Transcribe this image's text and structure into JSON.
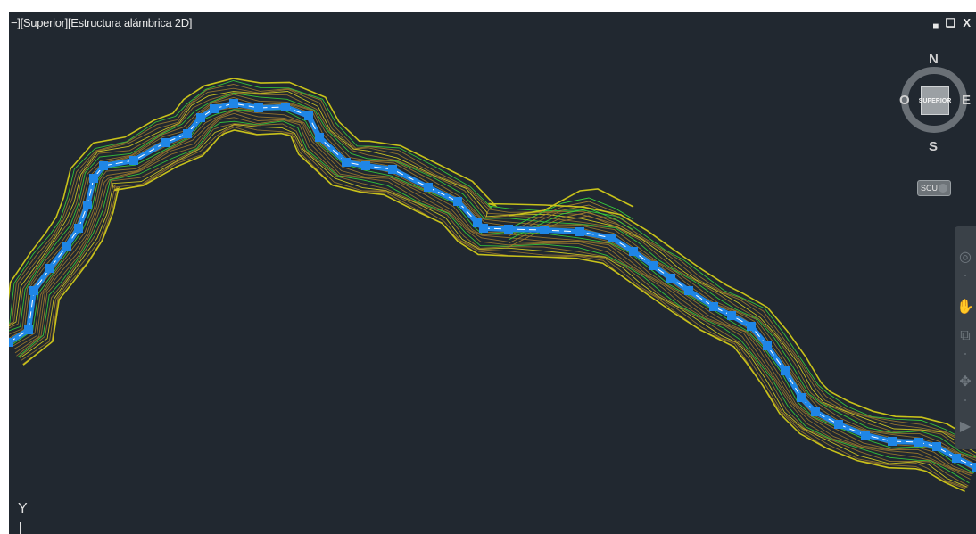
{
  "viewport": {
    "label": "−][Superior][Estructura alámbrica 2D]",
    "background": "#212830"
  },
  "window_controls": {
    "minimize": "▄",
    "restore": "❑",
    "close": "X"
  },
  "viewcube": {
    "north": "N",
    "south": "S",
    "east": "E",
    "west": "O",
    "face": "SUPERIOR"
  },
  "ucs_button": {
    "label": "SCU"
  },
  "navigation_bar": {
    "tools": [
      "steering-wheel-icon",
      "pan-hand-icon",
      "zoom-extents-icon",
      "orbit-icon",
      "showmotion-icon"
    ]
  },
  "ucs_icon": {
    "axis": "Y"
  },
  "colors": {
    "boundary": "#c8c21a",
    "contour_major": "#9c7a2e",
    "contour_green": "#39d23a",
    "contour_yellow": "#d8d020",
    "alignment": "#1f86e6",
    "alignment_center": "#ffffff"
  }
}
